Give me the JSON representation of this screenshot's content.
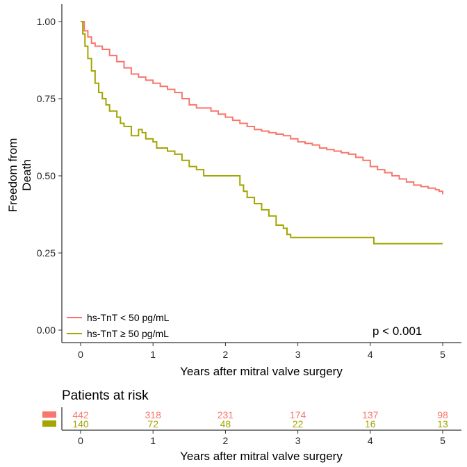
{
  "chart_data": {
    "type": "line",
    "step": true,
    "xlabel": "Years after mitral valve surgery",
    "ylabel_lines": [
      "Freedom from",
      "Death"
    ],
    "xlim": [
      0,
      5
    ],
    "ylim": [
      0,
      1
    ],
    "x_ticks": [
      "0",
      "1",
      "2",
      "3",
      "4",
      "5"
    ],
    "y_ticks": [
      "0.00",
      "0.25",
      "0.50",
      "0.75",
      "1.00"
    ],
    "grid": false,
    "legend_position": "bottom-left",
    "annotation": "p < 0.001",
    "series": [
      {
        "name": "hs-TnT < 50 pg/mL",
        "color": "#F8766D",
        "x": [
          0,
          0.05,
          0.1,
          0.15,
          0.2,
          0.3,
          0.4,
          0.5,
          0.6,
          0.7,
          0.8,
          0.9,
          1.0,
          1.1,
          1.2,
          1.3,
          1.4,
          1.5,
          1.6,
          1.7,
          1.8,
          1.9,
          2.0,
          2.1,
          2.2,
          2.3,
          2.4,
          2.5,
          2.6,
          2.7,
          2.8,
          2.9,
          3.0,
          3.1,
          3.2,
          3.3,
          3.4,
          3.5,
          3.6,
          3.7,
          3.8,
          3.9,
          4.0,
          4.1,
          4.2,
          4.3,
          4.4,
          4.5,
          4.6,
          4.7,
          4.8,
          4.9,
          4.95,
          5.0
        ],
        "y": [
          1.0,
          0.97,
          0.95,
          0.93,
          0.92,
          0.91,
          0.89,
          0.87,
          0.85,
          0.83,
          0.82,
          0.81,
          0.8,
          0.79,
          0.78,
          0.77,
          0.75,
          0.73,
          0.72,
          0.72,
          0.71,
          0.7,
          0.69,
          0.68,
          0.67,
          0.66,
          0.65,
          0.645,
          0.64,
          0.635,
          0.63,
          0.62,
          0.61,
          0.605,
          0.6,
          0.59,
          0.585,
          0.58,
          0.575,
          0.57,
          0.56,
          0.55,
          0.53,
          0.52,
          0.51,
          0.5,
          0.49,
          0.48,
          0.47,
          0.465,
          0.46,
          0.455,
          0.45,
          0.44
        ]
      },
      {
        "name": "hs-TnT ≥ 50 pg/mL",
        "color": "#A3A500",
        "x": [
          0,
          0.03,
          0.06,
          0.1,
          0.15,
          0.2,
          0.25,
          0.3,
          0.35,
          0.4,
          0.5,
          0.55,
          0.6,
          0.7,
          0.8,
          0.85,
          0.9,
          1.0,
          1.05,
          1.1,
          1.2,
          1.3,
          1.4,
          1.5,
          1.6,
          1.7,
          1.8,
          2.2,
          2.25,
          2.3,
          2.4,
          2.5,
          2.6,
          2.7,
          2.8,
          2.85,
          2.9,
          3.0,
          3.5,
          4.0,
          4.05,
          4.5,
          5.0
        ],
        "y": [
          1.0,
          0.96,
          0.92,
          0.88,
          0.84,
          0.8,
          0.77,
          0.75,
          0.73,
          0.71,
          0.69,
          0.67,
          0.66,
          0.63,
          0.65,
          0.64,
          0.62,
          0.61,
          0.59,
          0.59,
          0.58,
          0.57,
          0.55,
          0.53,
          0.52,
          0.5,
          0.5,
          0.47,
          0.45,
          0.43,
          0.41,
          0.39,
          0.37,
          0.34,
          0.33,
          0.31,
          0.3,
          0.3,
          0.3,
          0.3,
          0.28,
          0.28,
          0.28
        ]
      }
    ]
  },
  "risk_table": {
    "title": "Patients at risk",
    "xlabel": "Years after mitral valve surgery",
    "times": [
      "0",
      "1",
      "2",
      "3",
      "4",
      "5"
    ],
    "rows": [
      {
        "color": "#F8766D",
        "counts": [
          "442",
          "318",
          "231",
          "174",
          "137",
          "98"
        ]
      },
      {
        "color": "#A3A500",
        "counts": [
          "140",
          "72",
          "48",
          "22",
          "16",
          "13"
        ]
      }
    ]
  }
}
